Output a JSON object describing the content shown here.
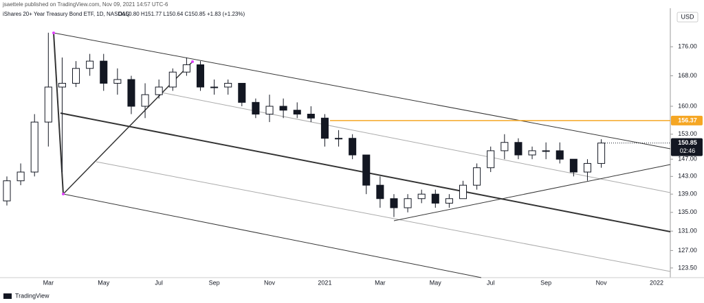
{
  "chart_data": {
    "type": "candlestick",
    "publisher": "jsaettele published on TradingView.com, Nov 09, 2021 14:57 UTC-6",
    "title": "iShares 20+ Year Treasury Bond ETF, 1D, NASDAQ",
    "ohlc_summary": "O150.80 H151.77 L150.64 C150.85 +1.83 (+1.23%)",
    "currency": "USD",
    "footer": "TradingView",
    "categories": [
      null,
      null,
      null,
      "Mar",
      null,
      null,
      null,
      "May",
      null,
      null,
      null,
      "Jul",
      null,
      null,
      null,
      "Sep",
      null,
      null,
      null,
      "Nov",
      null,
      null,
      null,
      "2021",
      null,
      null,
      null,
      "Mar",
      null,
      null,
      null,
      "May",
      null,
      null,
      null,
      "Jul",
      null,
      null,
      null,
      "Sep",
      null,
      null,
      null,
      "Nov",
      null,
      null,
      null,
      "2022"
    ],
    "open": [
      137.5,
      142,
      144,
      156,
      165,
      166,
      170,
      172,
      166,
      167,
      160,
      163,
      165,
      169,
      171,
      165,
      165,
      166,
      161,
      158,
      160,
      159,
      158,
      157,
      152,
      152,
      148,
      141,
      138,
      136,
      138,
      139,
      137,
      138,
      141,
      145,
      149,
      151,
      148,
      149,
      149,
      147,
      144,
      146,
      null,
      null,
      null,
      null
    ],
    "high": [
      143,
      146,
      158,
      180,
      173,
      172,
      174,
      174,
      170,
      168,
      166,
      167,
      170,
      173,
      172,
      167,
      167,
      166,
      162,
      163,
      162,
      161,
      160,
      158,
      154,
      153,
      148,
      143,
      139,
      139,
      140,
      140,
      139,
      142,
      146,
      150,
      153,
      152,
      150,
      151,
      151,
      147,
      147,
      151.77,
      null,
      null,
      null,
      null
    ],
    "low": [
      136.5,
      141,
      143,
      150,
      144,
      165,
      168,
      164,
      163,
      158,
      157,
      162,
      164,
      168,
      164,
      163,
      163,
      160,
      157,
      156,
      157,
      157,
      156,
      150,
      150,
      147,
      139,
      136,
      134,
      135,
      137,
      136,
      136,
      138,
      140,
      144,
      147,
      147,
      147,
      147,
      146,
      143,
      142,
      145,
      null,
      null,
      null,
      null
    ],
    "close": [
      142,
      144,
      156,
      165,
      166,
      170,
      172,
      166,
      167,
      160,
      163,
      165,
      169,
      171,
      165,
      165,
      166,
      161,
      158,
      160,
      159,
      158,
      157,
      152,
      152,
      148,
      141,
      138,
      136,
      138,
      139,
      137,
      138,
      141,
      145,
      149,
      151,
      148,
      149,
      149,
      147,
      144,
      146,
      150.85,
      null,
      null,
      null,
      null
    ],
    "log_scale": true,
    "ylim": [
      121.6,
      187.2
    ],
    "yticks": [
      {
        "value": 123.5,
        "label": "123.50"
      },
      {
        "value": 127,
        "label": "127.00"
      },
      {
        "value": 131,
        "label": "131.00"
      },
      {
        "value": 135,
        "label": "135.00"
      },
      {
        "value": 139,
        "label": "139.00"
      },
      {
        "value": 143,
        "label": "143.00"
      },
      {
        "value": 147,
        "label": "147.00"
      },
      {
        "value": 153,
        "label": "153.00"
      },
      {
        "value": 160,
        "label": "160.00"
      },
      {
        "value": 168,
        "label": "168.00"
      },
      {
        "value": 176,
        "label": "176.00"
      }
    ],
    "horizontal_level": {
      "value": 156.37,
      "color": "#f5a623"
    },
    "last_price": 150.85,
    "countdown": "02:46"
  }
}
